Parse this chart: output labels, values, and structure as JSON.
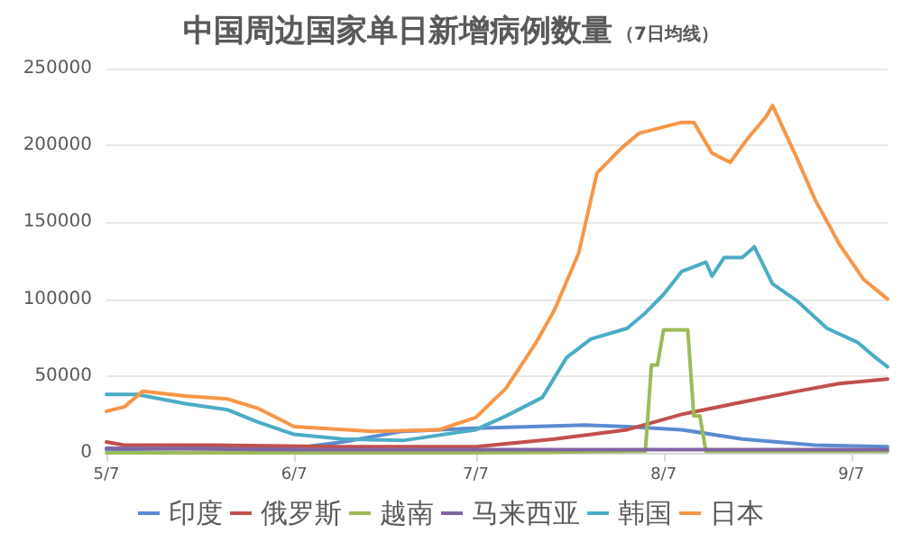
{
  "chart_data": {
    "type": "line",
    "title": "中国周边国家单日新增病例数量",
    "subtitle": "（7日均线）",
    "xlim": [
      "--05-07",
      "--09-13"
    ],
    "xticks": [
      {
        "value": "--05-07",
        "label": "5/7"
      },
      {
        "value": "--06-07",
        "label": "6/7"
      },
      {
        "value": "--07-07",
        "label": "7/7"
      },
      {
        "value": "--08-07",
        "label": "8/7"
      },
      {
        "value": "--09-07",
        "label": "9/7"
      }
    ],
    "ylim": [
      0,
      250000
    ],
    "yticks": [
      0,
      50000,
      100000,
      150000,
      200000,
      250000
    ],
    "grid": "y",
    "legend": "bottom",
    "marker": "none",
    "line_style": "solid",
    "series": [
      {
        "name": "印度",
        "color": "#5b8bd0",
        "x": [
          "--05-07",
          "--05-20",
          "--06-07",
          "--06-15",
          "--06-25",
          "--07-07",
          "--07-25",
          "--08-01",
          "--08-10",
          "--08-20",
          "--09-01",
          "--09-13"
        ],
        "values": [
          2000,
          3000,
          3000,
          7000,
          14000,
          16000,
          18000,
          17000,
          15000,
          9000,
          5000,
          4000
        ]
      },
      {
        "name": "俄罗斯",
        "color": "#c0504d",
        "x": [
          "--05-07",
          "--05-10",
          "--05-25",
          "--06-15",
          "--07-07",
          "--07-20",
          "--08-01",
          "--08-10",
          "--08-20",
          "--08-29",
          "--09-05",
          "--09-13"
        ],
        "values": [
          7000,
          5000,
          5000,
          4000,
          4000,
          9000,
          15000,
          25000,
          33000,
          40000,
          45000,
          48000
        ]
      },
      {
        "name": "越南",
        "color": "#9bbb59",
        "x": [
          "--05-07",
          "--06-07",
          "--07-07",
          "--08-04",
          "--08-05",
          "--08-06",
          "--08-07",
          "--08-11",
          "--08-12",
          "--08-13",
          "--08-14",
          "--09-13"
        ],
        "values": [
          0,
          0,
          0,
          1000,
          57000,
          57000,
          80000,
          80000,
          24000,
          24000,
          1000,
          1000
        ]
      },
      {
        "name": "马来西亚",
        "color": "#8064a2",
        "x": [
          "--05-07",
          "--06-07",
          "--07-07",
          "--08-07",
          "--09-13"
        ],
        "values": [
          3000,
          2000,
          2000,
          2000,
          2000
        ]
      },
      {
        "name": "韩国",
        "color": "#4bacc6",
        "x": [
          "--05-07",
          "--05-12",
          "--05-20",
          "--05-27",
          "--06-01",
          "--06-07",
          "--06-15",
          "--06-25",
          "--07-07",
          "--07-12",
          "--07-18",
          "--07-22",
          "--07-26",
          "--08-01",
          "--08-04",
          "--08-07",
          "--08-10",
          "--08-14",
          "--08-15",
          "--08-17",
          "--08-20",
          "--08-22",
          "--08-25",
          "--08-29",
          "--09-03",
          "--09-08",
          "--09-11",
          "--09-13"
        ],
        "values": [
          38000,
          38000,
          32000,
          28000,
          20000,
          12000,
          9000,
          8000,
          15000,
          24000,
          36000,
          62000,
          74000,
          81000,
          91000,
          103000,
          118000,
          124000,
          115000,
          127000,
          127000,
          134000,
          110000,
          99000,
          81000,
          72000,
          62000,
          56000
        ]
      },
      {
        "name": "日本",
        "color": "#f79646",
        "x": [
          "--05-07",
          "--05-10",
          "--05-13",
          "--05-20",
          "--05-27",
          "--06-01",
          "--06-07",
          "--06-20",
          "--07-01",
          "--07-07",
          "--07-12",
          "--07-17",
          "--07-20",
          "--07-24",
          "--07-27",
          "--07-31",
          "--08-03",
          "--08-10",
          "--08-12",
          "--08-15",
          "--08-18",
          "--08-21",
          "--08-24",
          "--08-25",
          "--08-29",
          "--09-01",
          "--09-05",
          "--09-09",
          "--09-13"
        ],
        "values": [
          27000,
          30000,
          40000,
          37000,
          35000,
          29000,
          17000,
          14000,
          15000,
          23000,
          42000,
          72000,
          93000,
          130000,
          182000,
          198000,
          208000,
          215000,
          215000,
          195000,
          189000,
          205000,
          219000,
          226000,
          192000,
          165000,
          136000,
          113000,
          100000
        ]
      }
    ]
  }
}
